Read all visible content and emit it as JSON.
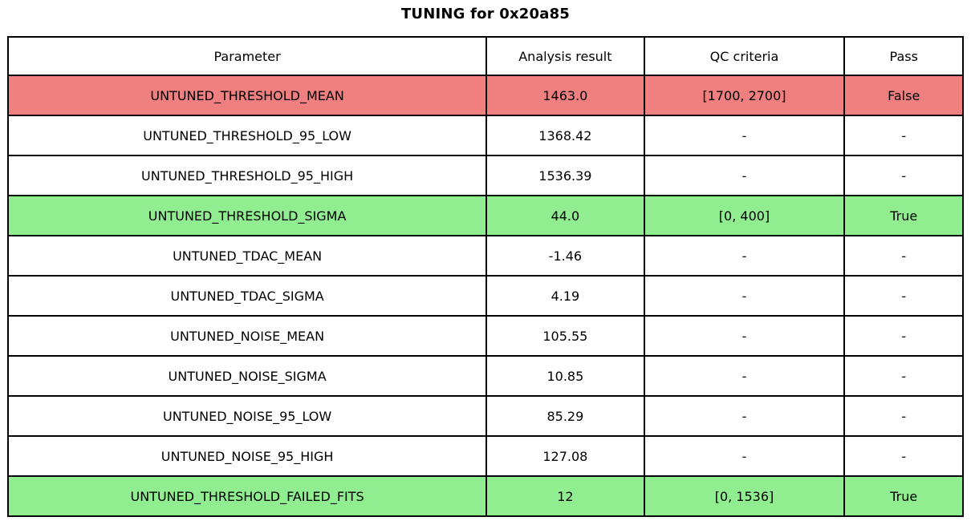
{
  "chart_data": {
    "type": "table",
    "title": "TUNING for 0x20a85",
    "columns": [
      "Parameter",
      "Analysis result",
      "QC criteria",
      "Pass"
    ],
    "rows": [
      {
        "parameter": "UNTUNED_THRESHOLD_MEAN",
        "result": "1463.0",
        "criteria": "[1700, 2700]",
        "pass": "False",
        "status": "fail"
      },
      {
        "parameter": "UNTUNED_THRESHOLD_95_LOW",
        "result": "1368.42",
        "criteria": "-",
        "pass": "-",
        "status": "none"
      },
      {
        "parameter": "UNTUNED_THRESHOLD_95_HIGH",
        "result": "1536.39",
        "criteria": "-",
        "pass": "-",
        "status": "none"
      },
      {
        "parameter": "UNTUNED_THRESHOLD_SIGMA",
        "result": "44.0",
        "criteria": "[0, 400]",
        "pass": "True",
        "status": "pass"
      },
      {
        "parameter": "UNTUNED_TDAC_MEAN",
        "result": "-1.46",
        "criteria": "-",
        "pass": "-",
        "status": "none"
      },
      {
        "parameter": "UNTUNED_TDAC_SIGMA",
        "result": "4.19",
        "criteria": "-",
        "pass": "-",
        "status": "none"
      },
      {
        "parameter": "UNTUNED_NOISE_MEAN",
        "result": "105.55",
        "criteria": "-",
        "pass": "-",
        "status": "none"
      },
      {
        "parameter": "UNTUNED_NOISE_SIGMA",
        "result": "10.85",
        "criteria": "-",
        "pass": "-",
        "status": "none"
      },
      {
        "parameter": "UNTUNED_NOISE_95_LOW",
        "result": "85.29",
        "criteria": "-",
        "pass": "-",
        "status": "none"
      },
      {
        "parameter": "UNTUNED_NOISE_95_HIGH",
        "result": "127.08",
        "criteria": "-",
        "pass": "-",
        "status": "none"
      },
      {
        "parameter": "UNTUNED_THRESHOLD_FAILED_FITS",
        "result": "12",
        "criteria": "[0, 1536]",
        "pass": "True",
        "status": "pass"
      }
    ],
    "layout": {
      "grid": "on",
      "cell_alignment": "center"
    }
  },
  "colors": {
    "fail_row": "#F08080",
    "pass_row": "#90EE90",
    "border": "#000000",
    "background": "#FFFFFF",
    "text": "#000000"
  }
}
